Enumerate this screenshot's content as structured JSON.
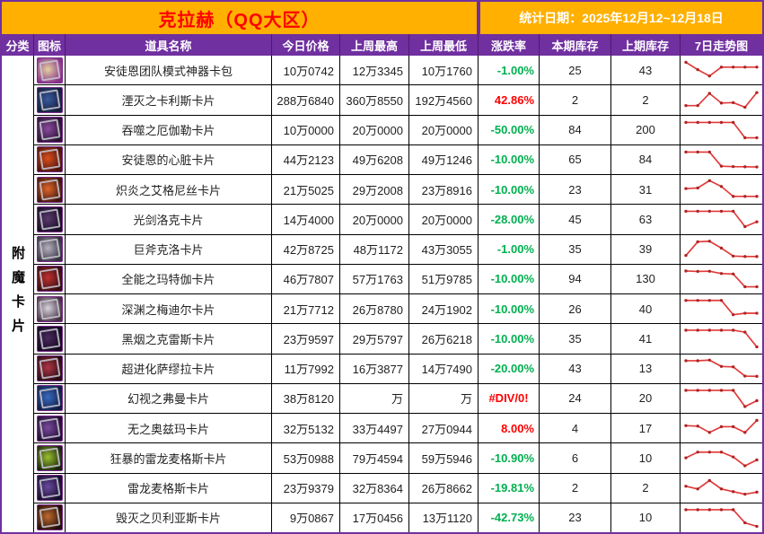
{
  "palette": {
    "title_bg": "#FFB000",
    "title_text": "#FF0000",
    "date_text": "#FFFFFF",
    "header_bg": "#7030A0",
    "header_text": "#FFFFFF",
    "change_down_green": "#00B050",
    "change_up_red": "#FF0000",
    "spark_line": "#E03A3A",
    "spark_dot": "#B22222",
    "grid_border": "#000000"
  },
  "header": {
    "title": "克拉赫（QQ大区）",
    "stat_date": "统计日期：2025年12月12~12月18日"
  },
  "table": {
    "columns": [
      "分类",
      "图标",
      "道具名称",
      "今日价格",
      "上周最高",
      "上周最低",
      "涨跌率",
      "本期库存",
      "上期库存",
      "7日走势图"
    ],
    "category_label": "附魔卡片",
    "rows": [
      {
        "name": "安徒恩团队模式神器卡包",
        "today": "10万0742",
        "week_high": "12万3345",
        "week_low": "10万1760",
        "change": "-1.00%",
        "change_dir": "down",
        "stock_now": "25",
        "stock_prev": "43",
        "icon": "card-pack-icon",
        "icon_colors": [
          "#e3d2a0",
          "#8a2f8a"
        ],
        "spark": [
          85,
          50,
          20,
          62,
          62,
          62,
          62
        ]
      },
      {
        "name": "湮灭之卡利斯卡片",
        "today": "288万6840",
        "week_high": "360万8550",
        "week_low": "192万4560",
        "change": "42.86%",
        "change_dir": "up",
        "stock_now": "2",
        "stock_prev": "2",
        "icon": "card-icon",
        "icon_colors": [
          "#3a5a9e",
          "#141d38"
        ],
        "spark": [
          20,
          20,
          78,
          32,
          34,
          12,
          82
        ]
      },
      {
        "name": "吞噬之厄伽勒卡片",
        "today": "10万0000",
        "week_high": "20万0000",
        "week_low": "20万0000",
        "change": "-50.00%",
        "change_dir": "down",
        "stock_now": "84",
        "stock_prev": "200",
        "icon": "card-icon",
        "icon_colors": [
          "#8a4a9e",
          "#28122f"
        ],
        "spark": [
          85,
          85,
          85,
          85,
          85,
          12,
          12
        ]
      },
      {
        "name": "安徒恩的心脏卡片",
        "today": "44万2123",
        "week_high": "49万6208",
        "week_low": "49万1246",
        "change": "-10.00%",
        "change_dir": "down",
        "stock_now": "65",
        "stock_prev": "84",
        "icon": "card-icon",
        "icon_colors": [
          "#d94f1e",
          "#4a120c"
        ],
        "spark": [
          85,
          85,
          85,
          18,
          16,
          15,
          14
        ]
      },
      {
        "name": "炽炎之艾格尼丝卡片",
        "today": "21万5025",
        "week_high": "29万2008",
        "week_low": "23万8916",
        "change": "-10.00%",
        "change_dir": "down",
        "stock_now": "23",
        "stock_prev": "31",
        "icon": "card-icon",
        "icon_colors": [
          "#e0662a",
          "#3d140c"
        ],
        "spark": [
          52,
          55,
          90,
          62,
          15,
          15,
          15
        ]
      },
      {
        "name": "光剑洛克卡片",
        "today": "14万4000",
        "week_high": "20万0000",
        "week_low": "20万0000",
        "change": "-28.00%",
        "change_dir": "down",
        "stock_now": "45",
        "stock_prev": "63",
        "icon": "card-icon",
        "icon_colors": [
          "#5a3a6e",
          "#170d22"
        ],
        "spark": [
          85,
          85,
          85,
          85,
          85,
          12,
          35
        ]
      },
      {
        "name": "巨斧克洛卡片",
        "today": "42万8725",
        "week_high": "48万1172",
        "week_low": "43万3055",
        "change": "-1.00%",
        "change_dir": "down",
        "stock_now": "35",
        "stock_prev": "39",
        "icon": "card-icon",
        "icon_colors": [
          "#b8b0c0",
          "#34303e"
        ],
        "spark": [
          20,
          85,
          88,
          55,
          17,
          15,
          15
        ]
      },
      {
        "name": "全能之玛特伽卡片",
        "today": "46万7807",
        "week_high": "57万1763",
        "week_low": "51万9785",
        "change": "-10.00%",
        "change_dir": "down",
        "stock_now": "94",
        "stock_prev": "130",
        "icon": "card-icon",
        "icon_colors": [
          "#c03030",
          "#330d10"
        ],
        "spark": [
          87,
          85,
          86,
          75,
          73,
          12,
          12
        ]
      },
      {
        "name": "深渊之梅迪尔卡片",
        "today": "21万7712",
        "week_high": "26万8780",
        "week_low": "24万1902",
        "change": "-10.00%",
        "change_dir": "down",
        "stock_now": "26",
        "stock_prev": "40",
        "icon": "card-icon",
        "icon_colors": [
          "#d8d4de",
          "#463040"
        ],
        "spark": [
          88,
          88,
          88,
          88,
          20,
          27,
          27
        ]
      },
      {
        "name": "黑烟之克雷斯卡片",
        "today": "23万9597",
        "week_high": "29万5797",
        "week_low": "26万6218",
        "change": "-10.00%",
        "change_dir": "down",
        "stock_now": "35",
        "stock_prev": "41",
        "icon": "card-icon",
        "icon_colors": [
          "#4a2a5e",
          "#12081c"
        ],
        "spark": [
          87,
          87,
          87,
          87,
          87,
          78,
          8
        ]
      },
      {
        "name": "超进化萨缪拉卡片",
        "today": "11万7992",
        "week_high": "16万3877",
        "week_low": "14万7490",
        "change": "-20.00%",
        "change_dir": "down",
        "stock_now": "43",
        "stock_prev": "13",
        "icon": "card-icon",
        "icon_colors": [
          "#b03545",
          "#260c14"
        ],
        "spark": [
          87,
          87,
          90,
          60,
          58,
          14,
          13
        ]
      },
      {
        "name": "幻视之弗曼卡片",
        "today": "38万8120",
        "week_high": "万",
        "week_low": "万",
        "change": "#DIV/0!",
        "change_dir": "error",
        "stock_now": "24",
        "stock_prev": "20",
        "icon": "card-icon",
        "icon_colors": [
          "#3a6ac0",
          "#101c42"
        ],
        "spark": [
          87,
          87,
          87,
          87,
          87,
          10,
          38
        ]
      },
      {
        "name": "无之奥兹玛卡片",
        "today": "32万5132",
        "week_high": "33万4497",
        "week_low": "27万0944",
        "change": "8.00%",
        "change_dir": "up",
        "stock_now": "4",
        "stock_prev": "17",
        "icon": "card-icon",
        "icon_colors": [
          "#7a4a9e",
          "#200d30"
        ],
        "spark": [
          60,
          58,
          28,
          55,
          55,
          28,
          85
        ]
      },
      {
        "name": "狂暴的雷龙麦格斯卡片",
        "today": "53万0988",
        "week_high": "79万4594",
        "week_low": "59万5946",
        "change": "-10.90%",
        "change_dir": "down",
        "stock_now": "6",
        "stock_prev": "10",
        "icon": "card-icon",
        "icon_colors": [
          "#9ac030",
          "#18220c"
        ],
        "spark": [
          48,
          75,
          75,
          75,
          52,
          10,
          38
        ]
      },
      {
        "name": "雷龙麦格斯卡片",
        "today": "23万9379",
        "week_high": "32万8364",
        "week_low": "26万8662",
        "change": "-19.81%",
        "change_dir": "down",
        "stock_now": "2",
        "stock_prev": "2",
        "icon": "card-icon",
        "icon_colors": [
          "#6a4a9e",
          "#160c2c"
        ],
        "spark": [
          58,
          45,
          85,
          45,
          32,
          20,
          30
        ]
      },
      {
        "name": "毁灭之贝利亚斯卡片",
        "today": "9万0867",
        "week_high": "17万0456",
        "week_low": "13万1120",
        "change": "-42.73%",
        "change_dir": "down",
        "stock_now": "23",
        "stock_prev": "10",
        "icon": "card-icon",
        "icon_colors": [
          "#c06a30",
          "#200c06"
        ],
        "spark": [
          87,
          87,
          87,
          87,
          87,
          25,
          8
        ]
      }
    ]
  }
}
